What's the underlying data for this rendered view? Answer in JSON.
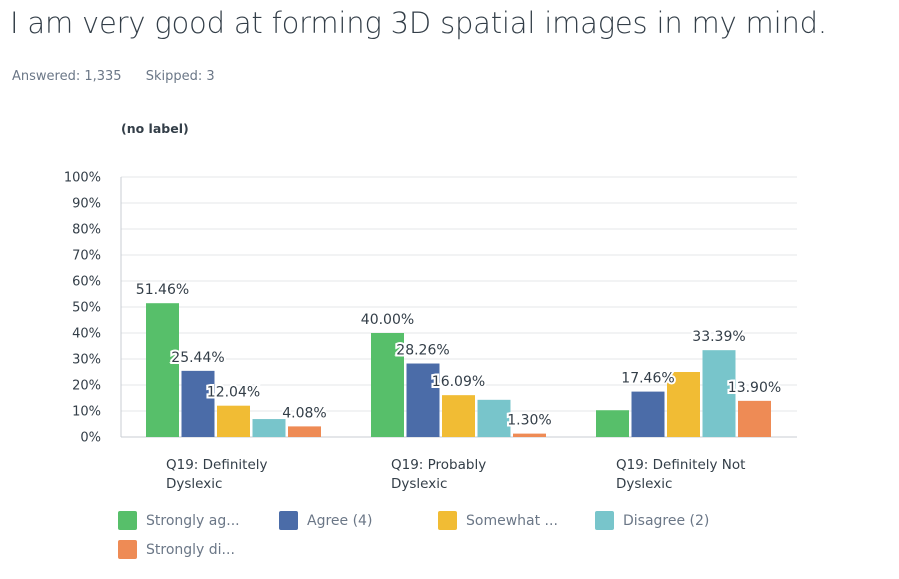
{
  "question": {
    "title": "I am very good at forming 3D spatial images in my mind.",
    "answered": "Answered: 1,335",
    "skipped": "Skipped: 3"
  },
  "chart_label": "(no label)",
  "colors": {
    "strongly_agree": "#57bf6a",
    "agree": "#4b6ca8",
    "somewhat": "#f1bc34",
    "disagree": "#78c5cb",
    "strongly_disagree": "#ee8b55",
    "grid": "#e4e7ea",
    "axis": "#c9ced3",
    "tick_text": "#333e48"
  },
  "legend": [
    {
      "label": "Strongly ag...",
      "color": "#57bf6a"
    },
    {
      "label": "Agree (4)",
      "color": "#4b6ca8"
    },
    {
      "label": "Somewhat ...",
      "color": "#f1bc34"
    },
    {
      "label": "Disagree (2)",
      "color": "#78c5cb"
    },
    {
      "label": "Strongly di...",
      "color": "#ee8b55"
    }
  ],
  "chart_data": {
    "type": "bar",
    "title": "I am very good at forming 3D spatial images in my mind.",
    "ylabel": "",
    "xlabel": "",
    "ylim": [
      0,
      100
    ],
    "y_ticks": [
      "0%",
      "10%",
      "20%",
      "30%",
      "40%",
      "50%",
      "60%",
      "70%",
      "80%",
      "90%",
      "100%"
    ],
    "grid": true,
    "legend_position": "bottom",
    "categories": [
      [
        "Q19: Definitely",
        "Dyslexic"
      ],
      [
        "Q19: Probably",
        "Dyslexic"
      ],
      [
        "Q19: Definitely Not",
        "Dyslexic"
      ]
    ],
    "series": [
      {
        "name": "Strongly ag...",
        "color": "#57bf6a",
        "values": [
          51.46,
          40.0,
          10.3
        ],
        "labels": [
          "51.46%",
          "40.00%",
          ""
        ]
      },
      {
        "name": "Agree (4)",
        "color": "#4b6ca8",
        "values": [
          25.44,
          28.26,
          17.46
        ],
        "labels": [
          "25.44%",
          "28.26%",
          "17.46%"
        ]
      },
      {
        "name": "Somewhat ...",
        "color": "#f1bc34",
        "values": [
          12.04,
          16.09,
          25.0
        ],
        "labels": [
          "12.04%",
          "16.09%",
          ""
        ]
      },
      {
        "name": "Disagree (2)",
        "color": "#78c5cb",
        "values": [
          6.9,
          14.3,
          33.39
        ],
        "labels": [
          "",
          "",
          "33.39%"
        ]
      },
      {
        "name": "Strongly di...",
        "color": "#ee8b55",
        "values": [
          4.08,
          1.3,
          13.9
        ],
        "labels": [
          "4.08%",
          "1.30%",
          "13.90%"
        ]
      }
    ]
  }
}
